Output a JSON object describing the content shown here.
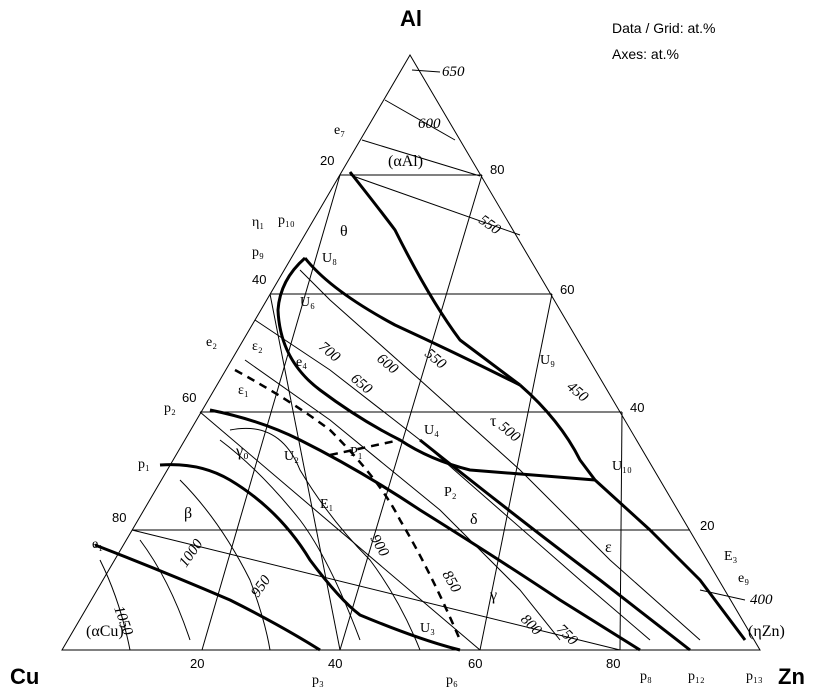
{
  "corners": {
    "top": "Al",
    "left": "Cu",
    "right": "Zn"
  },
  "notes": {
    "line1": "Data / Grid: at.%",
    "line2": "Axes: at.%"
  },
  "axis_ticks": {
    "left_side": [
      "20",
      "40",
      "60",
      "80"
    ],
    "right_side": [
      "80",
      "60",
      "40",
      "20"
    ],
    "bottom": [
      "20",
      "40",
      "60",
      "80"
    ]
  },
  "isotherm_labels": [
    "650",
    "600",
    "550",
    "700",
    "650",
    "600",
    "550",
    "450",
    "500",
    "400",
    "1050",
    "1000",
    "950",
    "900",
    "850",
    "800",
    "750"
  ],
  "phase_labels": [
    "(αAl)",
    "θ",
    "τ",
    "ε",
    "δ",
    "γ",
    "γ₀",
    "β",
    "(αCu)",
    "(ηZn)",
    "ε₂",
    "ε₁",
    "E₁",
    "P₁",
    "P₂"
  ],
  "point_labels": [
    "e₇",
    "η₁",
    "p₁₀",
    "p₉",
    "U₈",
    "U₆",
    "U₉",
    "U₁₀",
    "U₄",
    "U₂",
    "U₃",
    "e₂",
    "e₄",
    "p₂",
    "p₁",
    "e₁",
    "E₃",
    "e₉",
    "p₃",
    "p₆",
    "p₈",
    "p₁₂",
    "p₁₃"
  ]
}
